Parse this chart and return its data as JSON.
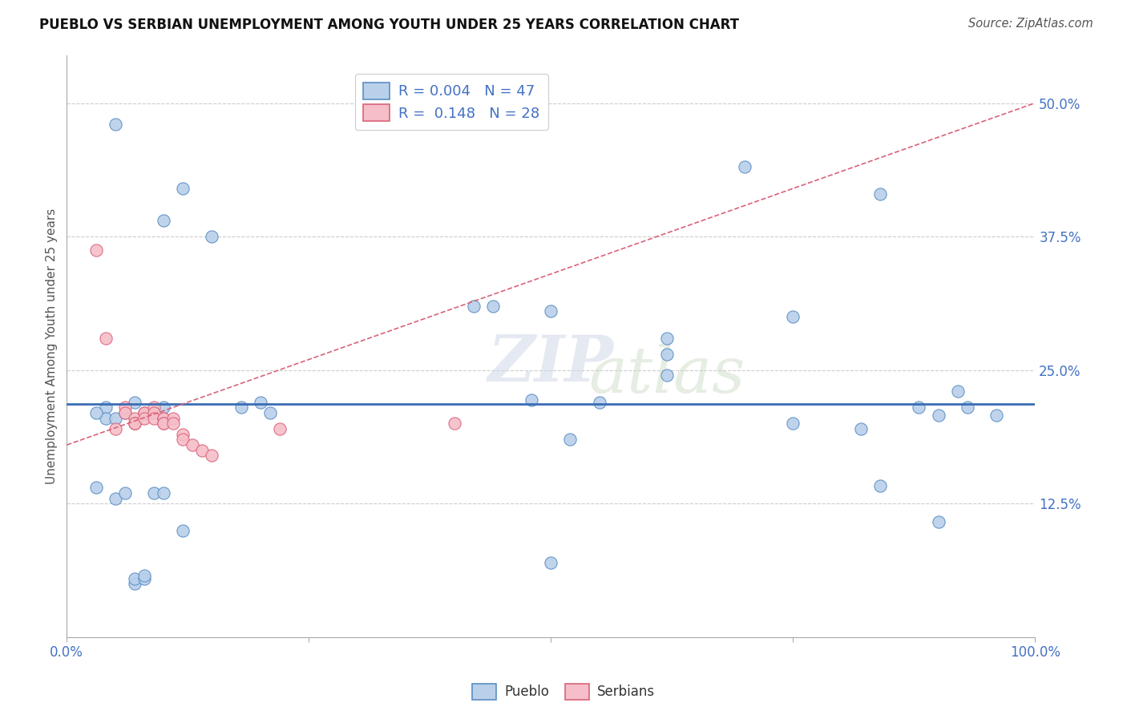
{
  "title": "PUEBLO VS SERBIAN UNEMPLOYMENT AMONG YOUTH UNDER 25 YEARS CORRELATION CHART",
  "source": "Source: ZipAtlas.com",
  "ylabel": "Unemployment Among Youth under 25 years",
  "xlim": [
    0.0,
    1.0
  ],
  "ylim": [
    0.0,
    0.545
  ],
  "xticks": [
    0.0,
    0.25,
    0.5,
    0.75,
    1.0
  ],
  "xtick_labels": [
    "0.0%",
    "",
    "",
    "",
    "100.0%"
  ],
  "yticks": [
    0.125,
    0.25,
    0.375,
    0.5
  ],
  "ytick_labels": [
    "12.5%",
    "25.0%",
    "37.5%",
    "50.0%"
  ],
  "pueblo_R": "0.004",
  "pueblo_N": "47",
  "serbian_R": "0.148",
  "serbian_N": "28",
  "pueblo_color": "#b8d0ea",
  "pueblo_edge_color": "#5b8ec4",
  "serbian_color": "#f5bec8",
  "serbian_edge_color": "#d9637a",
  "pueblo_line_color": "#3a6db5",
  "serbian_line_color": "#d9637a",
  "pueblo_x": [
    0.05,
    0.12,
    0.1,
    0.15,
    0.42,
    0.44,
    0.5,
    0.62,
    0.7,
    0.84,
    0.92,
    0.04,
    0.07,
    0.2,
    0.48,
    0.62,
    0.04,
    0.05,
    0.03,
    0.06,
    0.08,
    0.1,
    0.18,
    0.52,
    0.75,
    0.82,
    0.9,
    0.96,
    0.84,
    0.9,
    0.03,
    0.05,
    0.06,
    0.09,
    0.1,
    0.12,
    0.5,
    0.07,
    0.07,
    0.08,
    0.08,
    0.21,
    0.55,
    0.62,
    0.75,
    0.88,
    0.93
  ],
  "pueblo_y": [
    0.48,
    0.42,
    0.39,
    0.375,
    0.31,
    0.31,
    0.305,
    0.265,
    0.44,
    0.415,
    0.23,
    0.215,
    0.22,
    0.22,
    0.222,
    0.245,
    0.205,
    0.205,
    0.21,
    0.21,
    0.21,
    0.215,
    0.215,
    0.185,
    0.2,
    0.195,
    0.208,
    0.208,
    0.142,
    0.108,
    0.14,
    0.13,
    0.135,
    0.135,
    0.135,
    0.1,
    0.07,
    0.05,
    0.055,
    0.055,
    0.058,
    0.21,
    0.22,
    0.28,
    0.3,
    0.215,
    0.215
  ],
  "serbian_x": [
    0.03,
    0.04,
    0.05,
    0.06,
    0.06,
    0.07,
    0.07,
    0.07,
    0.07,
    0.08,
    0.08,
    0.08,
    0.09,
    0.09,
    0.09,
    0.1,
    0.1,
    0.1,
    0.1,
    0.11,
    0.11,
    0.12,
    0.12,
    0.13,
    0.14,
    0.15,
    0.22,
    0.4
  ],
  "serbian_y": [
    0.362,
    0.28,
    0.195,
    0.215,
    0.21,
    0.205,
    0.2,
    0.2,
    0.2,
    0.21,
    0.21,
    0.205,
    0.215,
    0.21,
    0.205,
    0.205,
    0.205,
    0.2,
    0.2,
    0.205,
    0.2,
    0.19,
    0.185,
    0.18,
    0.175,
    0.17,
    0.195,
    0.2
  ],
  "pueblo_line_y_start": 0.218,
  "pueblo_line_y_end": 0.218,
  "serbian_line_x_start": 0.0,
  "serbian_line_x_end": 1.0,
  "serbian_line_y_start": 0.18,
  "serbian_line_y_end": 0.5
}
